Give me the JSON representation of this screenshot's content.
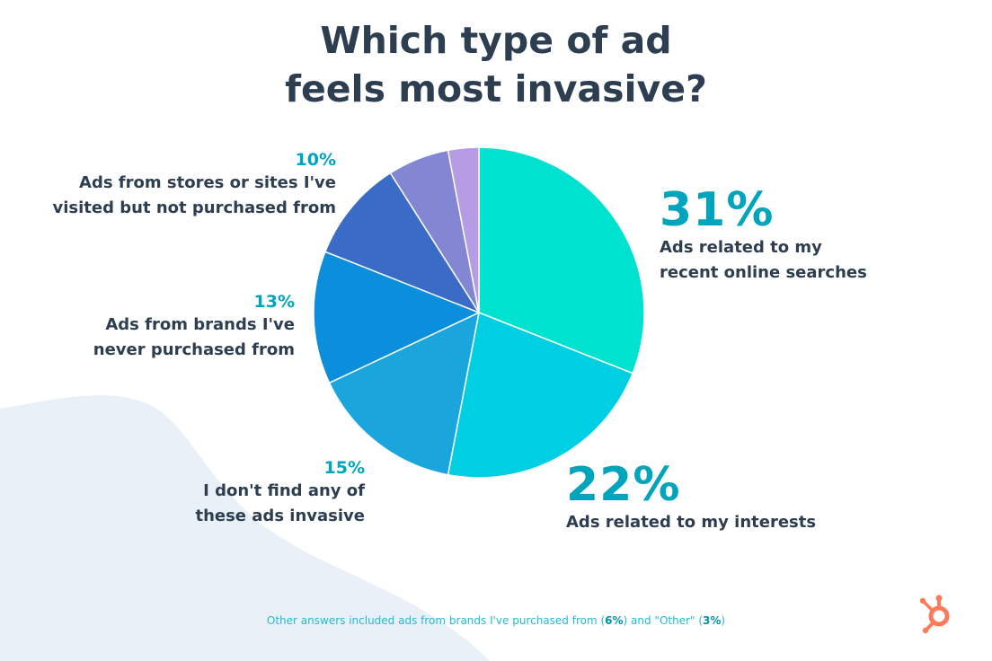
{
  "title": {
    "line1": "Which type of ad",
    "line2": "feels most invasive?"
  },
  "chart_data": {
    "type": "pie",
    "title": "Which type of ad feels most invasive?",
    "unit": "%",
    "slices": [
      {
        "label": "Ads related to my recent online searches",
        "pct_label": "31%",
        "value": 31,
        "color": "#00e2d0"
      },
      {
        "label": "Ads related to my interests",
        "pct_label": "22%",
        "value": 22,
        "color": "#00cfe3"
      },
      {
        "label": "I don't find any of these ads invasive",
        "pct_label": "15%",
        "value": 15,
        "color": "#1aa6dd"
      },
      {
        "label": "Ads from brands I've never purchased from",
        "pct_label": "13%",
        "value": 13,
        "color": "#0b8fdc"
      },
      {
        "label": "Ads from stores or sites I've visited but not purchased from",
        "pct_label": "10%",
        "value": 10,
        "color": "#3a6cc7"
      },
      {
        "label": "Ads from brands I've purchased from",
        "value": 6,
        "color": "#8387d3"
      },
      {
        "label": "Other",
        "value": 3,
        "color": "#b59ce5"
      }
    ]
  },
  "labels": {
    "s31": {
      "pct": "31%",
      "line1": "Ads related to my",
      "line2": "recent online searches"
    },
    "s22": {
      "pct": "22%",
      "line1": "Ads related to my interests"
    },
    "s15": {
      "pct": "15%",
      "line1": "I don't find any of",
      "line2": "these ads invasive"
    },
    "s13": {
      "pct": "13%",
      "line1": "Ads from brands I've",
      "line2": "never purchased from"
    },
    "s10": {
      "pct": "10%",
      "line1": "Ads from stores or sites I've",
      "line2": "visited but not purchased from"
    }
  },
  "footnote": {
    "part1": "Other answers included ads from brands I've purchased from (",
    "v1": "6%",
    "part2": ") and \"Other\" (",
    "v2": "3%",
    "part3": ")"
  },
  "colors": {
    "accent": "#00a4bd",
    "title": "#2d3e50",
    "logo": "#ff7a59",
    "blob": "#eaf0f8"
  },
  "icons": {
    "logo": "hubspot-sprocket-icon"
  }
}
